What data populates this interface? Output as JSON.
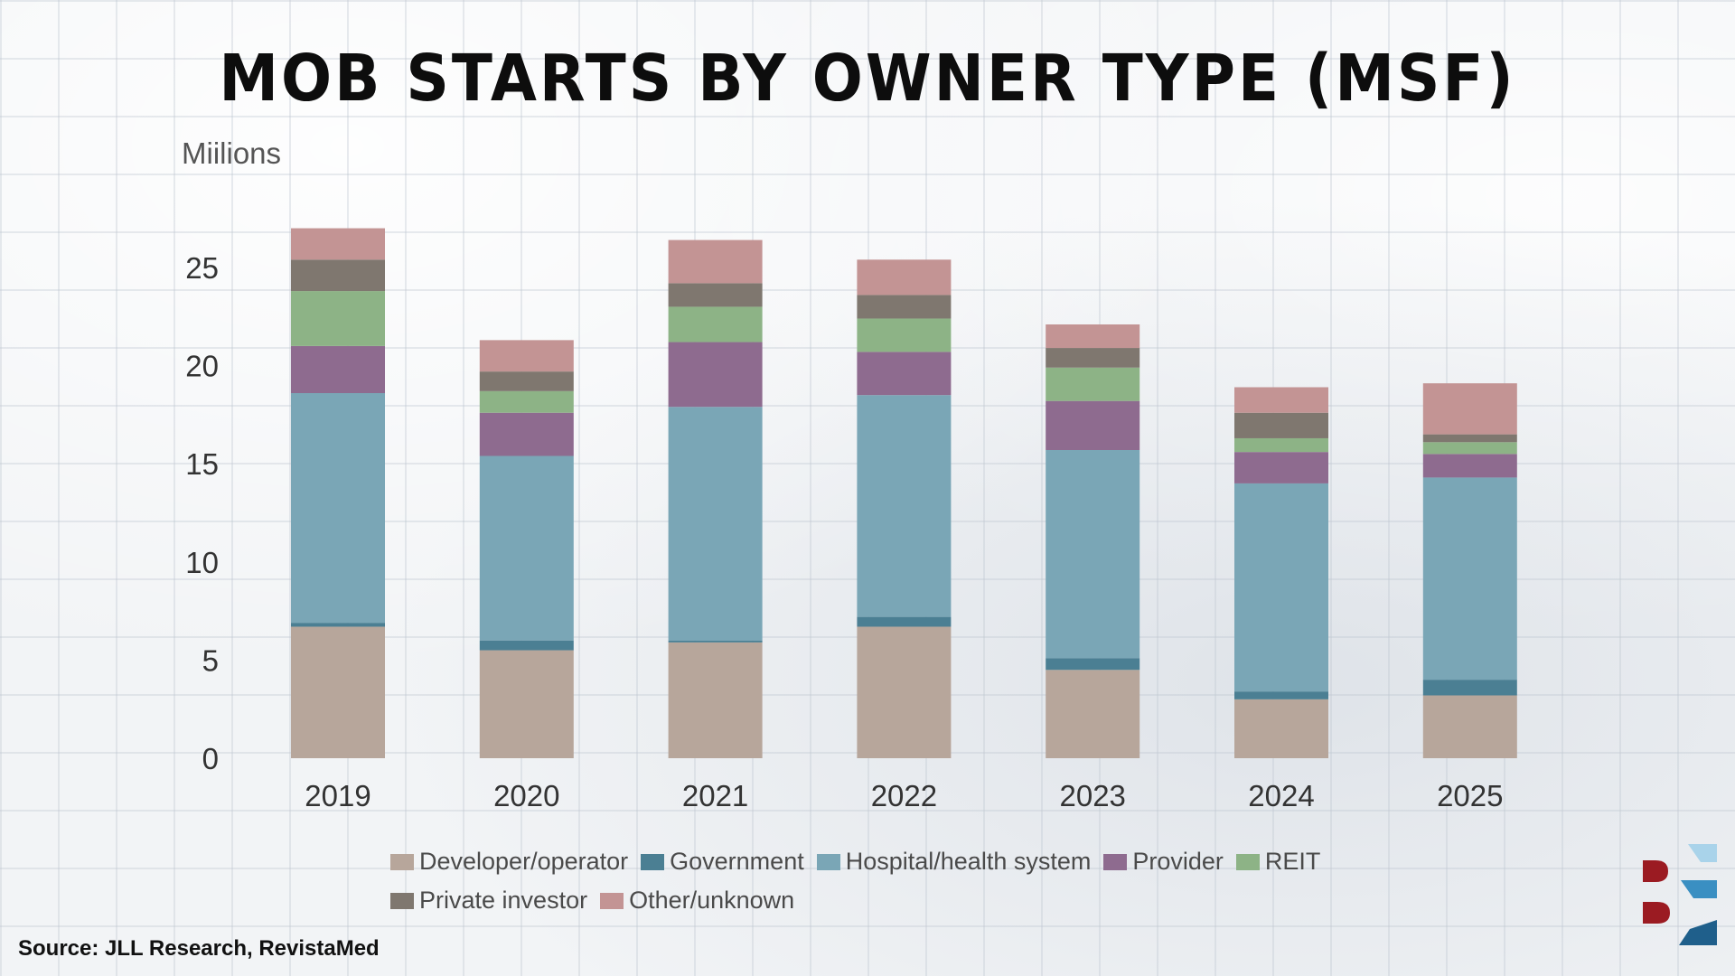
{
  "title": "MOB STARTS BY OWNER TYPE (MSF)",
  "source": "Source: JLL Research, RevistaMed",
  "logo": {
    "icon": "brand-logo-icon",
    "colors": [
      "#9b1b22",
      "#3a8fc2",
      "#a9d3ea",
      "#1f5f8b"
    ]
  },
  "chart_data": {
    "type": "bar",
    "stacked": true,
    "title": "MOB STARTS BY OWNER TYPE (MSF)",
    "ylabel": "Miilions",
    "xlabel": "",
    "ylim": [
      0,
      27
    ],
    "yticks": [
      0,
      5,
      10,
      15,
      20,
      25
    ],
    "categories": [
      "2019",
      "2020",
      "2021",
      "2022",
      "2023",
      "2024",
      "2025"
    ],
    "series": [
      {
        "name": "Developer/operator",
        "color": "#b7a69b",
        "values": [
          6.7,
          5.5,
          5.9,
          6.7,
          4.5,
          3.0,
          3.2
        ]
      },
      {
        "name": "Government",
        "color": "#4b7f93",
        "values": [
          0.2,
          0.5,
          0.1,
          0.5,
          0.6,
          0.4,
          0.8
        ]
      },
      {
        "name": "Hospital/health system",
        "color": "#7aa6b6",
        "values": [
          11.7,
          9.4,
          11.9,
          11.3,
          10.6,
          10.6,
          10.3
        ]
      },
      {
        "name": "Provider",
        "color": "#8e6b8f",
        "values": [
          2.4,
          2.2,
          3.3,
          2.2,
          2.5,
          1.6,
          1.2
        ]
      },
      {
        "name": "REIT",
        "color": "#8db386",
        "values": [
          2.8,
          1.1,
          1.8,
          1.7,
          1.7,
          0.7,
          0.6
        ]
      },
      {
        "name": "Private investor",
        "color": "#7f776f",
        "values": [
          1.6,
          1.0,
          1.2,
          1.2,
          1.0,
          1.3,
          0.4
        ]
      },
      {
        "name": "Other/unknown",
        "color": "#c39494",
        "values": [
          1.6,
          1.6,
          2.2,
          1.8,
          1.2,
          1.3,
          2.6
        ]
      }
    ]
  }
}
